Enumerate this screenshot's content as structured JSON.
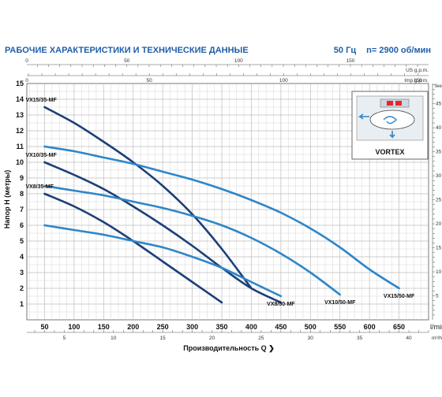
{
  "header": {
    "title": "РАБОЧИЕ ХАРАКТЕРИСТИКИ И ТЕХНИЧЕСКИЕ ДАННЫЕ",
    "frequency": "50 Гц",
    "speed": "n= 2900 об/мин"
  },
  "inset": {
    "label": "VORTEX"
  },
  "chart_data": {
    "type": "line",
    "xlabel": "Производительность Q",
    "ylabel": "Напор H (метры)",
    "x_unit": "l/min",
    "xlim": [
      20,
      700
    ],
    "ylim": [
      0,
      15
    ],
    "x_ticks": [
      50,
      100,
      150,
      200,
      250,
      300,
      350,
      400,
      450,
      500,
      550,
      600,
      650
    ],
    "y_ticks": [
      1,
      2,
      3,
      4,
      5,
      6,
      7,
      8,
      9,
      10,
      11,
      12,
      13,
      14,
      15
    ],
    "top_scale": {
      "unit_top": "US g.p.m.",
      "unit_bottom": "Imp g.p.m.",
      "ticks_us": [
        0,
        50,
        100,
        150
      ],
      "ticks_imp": [
        0,
        50,
        100,
        150
      ]
    },
    "bottom_scale": {
      "unit": "m³/h",
      "ticks": [
        0,
        5,
        10,
        15,
        20,
        25,
        30,
        35,
        40
      ]
    },
    "right_scale": {
      "unit": "feet",
      "ticks": [
        5,
        10,
        15,
        20,
        25,
        30,
        35,
        40,
        45
      ]
    },
    "grid": true,
    "series": [
      {
        "name": "VX15/35-MF",
        "label_pos": "left",
        "color": "#1c3f77",
        "x": [
          50,
          100,
          150,
          200,
          250,
          300,
          350,
          400
        ],
        "y": [
          13.5,
          12.5,
          11.3,
          10.0,
          8.5,
          6.7,
          4.5,
          2.0
        ]
      },
      {
        "name": "VX15/50-MF",
        "label_pos": "right",
        "color": "#2e86c8",
        "x": [
          50,
          100,
          150,
          200,
          250,
          300,
          350,
          400,
          450,
          500,
          550,
          600,
          650
        ],
        "y": [
          11.0,
          10.7,
          10.3,
          9.9,
          9.4,
          8.9,
          8.3,
          7.6,
          6.8,
          5.8,
          4.6,
          3.2,
          2.0
        ]
      },
      {
        "name": "VX10/35-MF",
        "label_pos": "left",
        "color": "#1c3f77",
        "x": [
          50,
          100,
          150,
          200,
          250,
          300,
          350,
          400,
          450
        ],
        "y": [
          10.0,
          9.2,
          8.3,
          7.2,
          6.0,
          4.7,
          3.3,
          2.0,
          1.1
        ]
      },
      {
        "name": "VX10/50-MF",
        "label_pos": "right",
        "color": "#2e86c8",
        "x": [
          50,
          100,
          150,
          200,
          250,
          300,
          350,
          400,
          450,
          500,
          550
        ],
        "y": [
          8.5,
          8.2,
          7.9,
          7.5,
          7.1,
          6.6,
          6.0,
          5.2,
          4.2,
          3.0,
          1.6
        ]
      },
      {
        "name": "VX8/35-MF",
        "label_pos": "left",
        "color": "#1c3f77",
        "x": [
          50,
          100,
          150,
          200,
          250,
          300,
          350
        ],
        "y": [
          8.0,
          7.2,
          6.2,
          5.0,
          3.7,
          2.4,
          1.1
        ]
      },
      {
        "name": "VX8/50-MF",
        "label_pos": "right",
        "color": "#2e86c8",
        "x": [
          50,
          100,
          150,
          200,
          250,
          300,
          350,
          400,
          450
        ],
        "y": [
          6.0,
          5.7,
          5.4,
          5.0,
          4.6,
          4.0,
          3.3,
          2.4,
          1.5
        ]
      }
    ]
  }
}
